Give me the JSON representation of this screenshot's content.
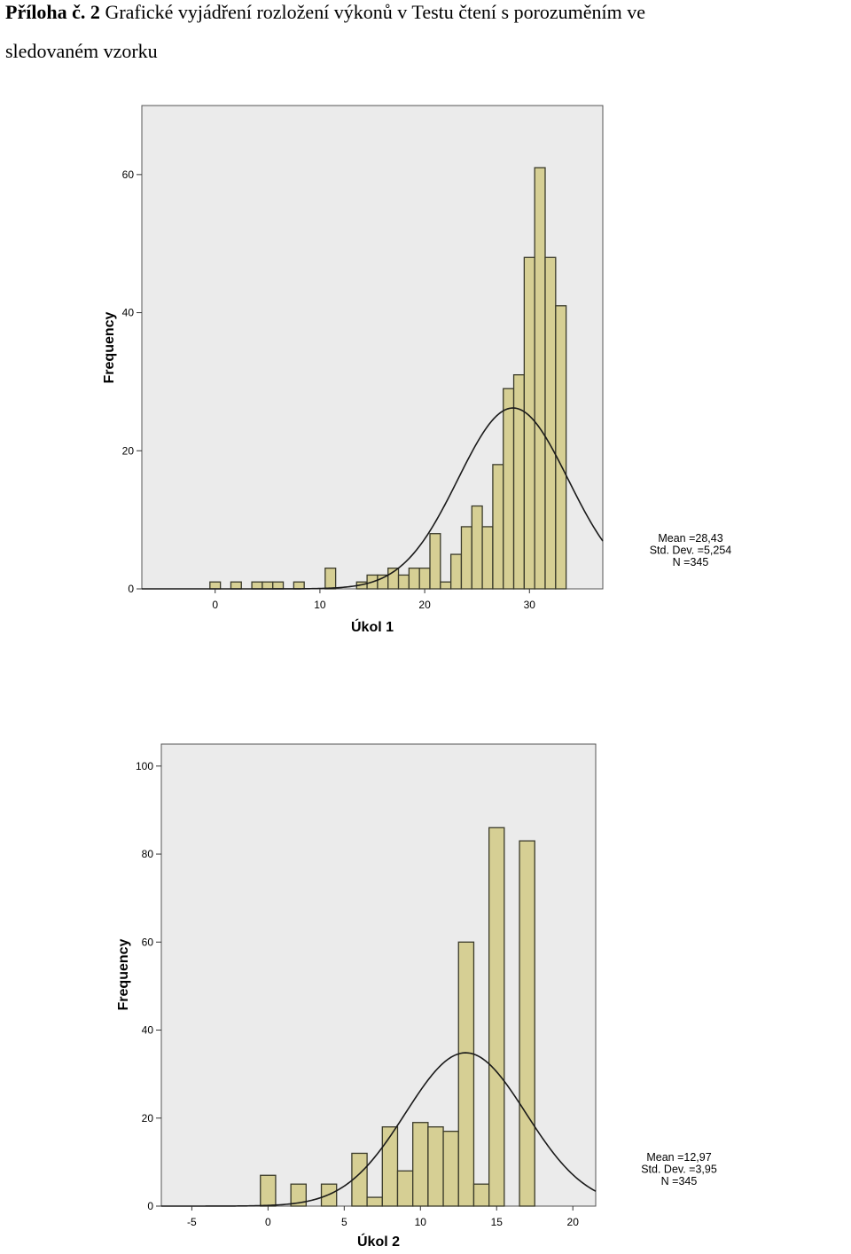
{
  "heading": {
    "label": "Příloha č. 2",
    "line1": "Grafické vyjádření rozložení výkonů v Testu čtení s porozuměním ve",
    "line2": "sledovaném vzorku"
  },
  "chart_data": [
    {
      "type": "bar",
      "title": "",
      "xlabel": "Úkol 1",
      "ylabel": "Frequency",
      "xlim": [
        -7,
        37
      ],
      "ylim": [
        0,
        70
      ],
      "xticks": [
        0,
        10,
        20,
        30
      ],
      "yticks": [
        0,
        20,
        40,
        60
      ],
      "bar_width": 1,
      "bar_color": "#d6cf94",
      "background": "#ebebeb",
      "x": [
        0,
        2,
        4,
        5,
        6,
        8,
        11,
        14,
        15,
        16,
        17,
        18,
        19,
        20,
        21,
        22,
        23,
        24,
        25,
        26,
        27,
        28,
        29,
        30,
        31,
        32,
        33
      ],
      "values": [
        1,
        1,
        1,
        1,
        1,
        1,
        3,
        1,
        2,
        2,
        3,
        2,
        3,
        3,
        8,
        1,
        5,
        9,
        12,
        9,
        18,
        29,
        31,
        48,
        61,
        48,
        41
      ],
      "normal_curve": {
        "mean": 28.43,
        "sd": 5.254,
        "n": 345
      },
      "stats": [
        "Mean =28,43",
        "Std. Dev. =5,254",
        "N =345"
      ]
    },
    {
      "type": "bar",
      "title": "",
      "xlabel": "Úkol 2",
      "ylabel": "Frequency",
      "xlim": [
        -7,
        21.5
      ],
      "ylim": [
        0,
        105
      ],
      "xticks": [
        -5,
        0,
        5,
        10,
        15,
        20
      ],
      "yticks": [
        0,
        20,
        40,
        60,
        80,
        100
      ],
      "bar_width": 1,
      "bar_color": "#d6cf94",
      "background": "#ebebeb",
      "x": [
        0,
        2,
        4,
        6,
        7,
        8,
        9,
        10,
        11,
        12,
        13,
        14,
        15,
        17
      ],
      "values": [
        7,
        5,
        5,
        12,
        2,
        18,
        8,
        19,
        18,
        17,
        60,
        5,
        86,
        83
      ],
      "normal_curve": {
        "mean": 12.97,
        "sd": 3.95,
        "n": 345
      },
      "stats": [
        "Mean =12,97",
        "Std. Dev. =3,95",
        "N =345"
      ]
    }
  ]
}
